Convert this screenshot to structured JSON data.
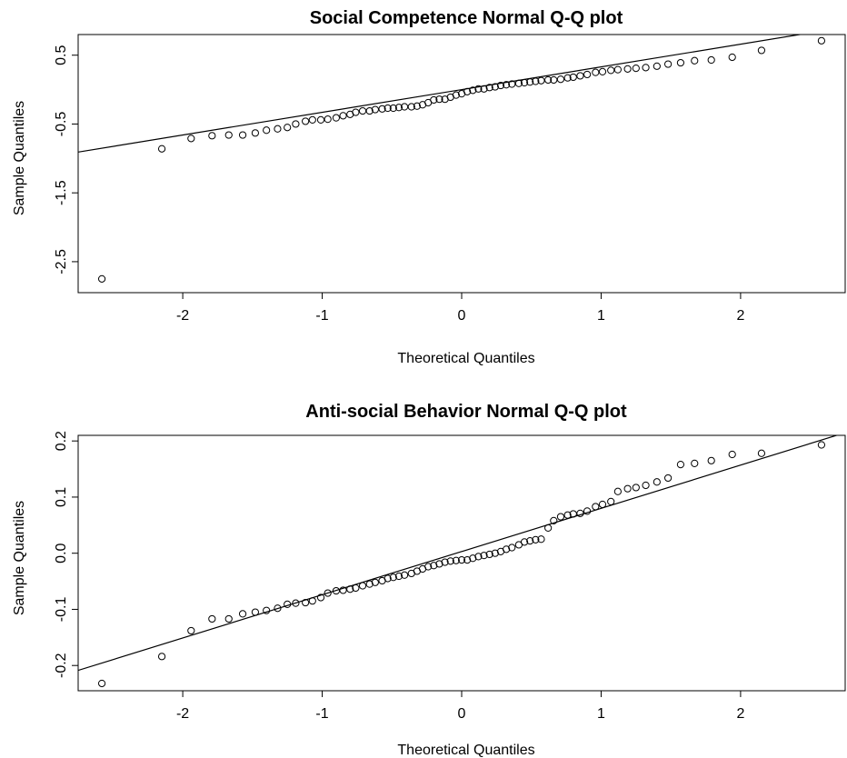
{
  "chart_data": [
    {
      "type": "scatter",
      "title": "Social Competence Normal Q-Q plot",
      "xlabel": "Theoretical Quantiles",
      "ylabel": "Sample Quantiles",
      "xlim": [
        -2.75,
        2.75
      ],
      "ylim": [
        -2.95,
        0.8
      ],
      "xticks": [
        -2,
        -1,
        0,
        1,
        2
      ],
      "xtick_labels": [
        "-2",
        "-1",
        "0",
        "1",
        "2"
      ],
      "yticks": [
        -2.5,
        -1.5,
        -0.5,
        0.5
      ],
      "ytick_labels": [
        "-2.5",
        "-1.5",
        "-0.5",
        "0.5"
      ],
      "grid": false,
      "reference_line": {
        "intercept": 0.0,
        "slope": 0.33
      },
      "series": [
        {
          "points": [
            [
              -2.58,
              -2.75
            ],
            [
              -2.15,
              -0.86
            ],
            [
              -1.94,
              -0.71
            ],
            [
              -1.79,
              -0.67
            ],
            [
              -1.67,
              -0.66
            ],
            [
              -1.57,
              -0.66
            ],
            [
              -1.48,
              -0.63
            ],
            [
              -1.4,
              -0.59
            ],
            [
              -1.32,
              -0.57
            ],
            [
              -1.25,
              -0.55
            ],
            [
              -1.19,
              -0.5
            ],
            [
              -1.12,
              -0.46
            ],
            [
              -1.07,
              -0.44
            ],
            [
              -1.01,
              -0.44
            ],
            [
              -0.96,
              -0.43
            ],
            [
              -0.9,
              -0.41
            ],
            [
              -0.85,
              -0.38
            ],
            [
              -0.8,
              -0.36
            ],
            [
              -0.76,
              -0.33
            ],
            [
              -0.71,
              -0.31
            ],
            [
              -0.66,
              -0.31
            ],
            [
              -0.62,
              -0.29
            ],
            [
              -0.57,
              -0.28
            ],
            [
              -0.53,
              -0.27
            ],
            [
              -0.49,
              -0.27
            ],
            [
              -0.45,
              -0.26
            ],
            [
              -0.41,
              -0.25
            ],
            [
              -0.36,
              -0.25
            ],
            [
              -0.32,
              -0.24
            ],
            [
              -0.28,
              -0.22
            ],
            [
              -0.24,
              -0.19
            ],
            [
              -0.2,
              -0.15
            ],
            [
              -0.16,
              -0.14
            ],
            [
              -0.12,
              -0.14
            ],
            [
              -0.08,
              -0.11
            ],
            [
              -0.04,
              -0.08
            ],
            [
              0.0,
              -0.06
            ],
            [
              0.04,
              -0.03
            ],
            [
              0.08,
              -0.01
            ],
            [
              0.12,
              0.01
            ],
            [
              0.16,
              0.01
            ],
            [
              0.2,
              0.03
            ],
            [
              0.24,
              0.04
            ],
            [
              0.28,
              0.06
            ],
            [
              0.32,
              0.07
            ],
            [
              0.36,
              0.08
            ],
            [
              0.41,
              0.09
            ],
            [
              0.45,
              0.1
            ],
            [
              0.49,
              0.11
            ],
            [
              0.53,
              0.12
            ],
            [
              0.57,
              0.13
            ],
            [
              0.62,
              0.14
            ],
            [
              0.66,
              0.14
            ],
            [
              0.71,
              0.15
            ],
            [
              0.76,
              0.17
            ],
            [
              0.8,
              0.18
            ],
            [
              0.85,
              0.2
            ],
            [
              0.9,
              0.22
            ],
            [
              0.96,
              0.25
            ],
            [
              1.01,
              0.26
            ],
            [
              1.07,
              0.28
            ],
            [
              1.12,
              0.29
            ],
            [
              1.19,
              0.3
            ],
            [
              1.25,
              0.31
            ],
            [
              1.32,
              0.32
            ],
            [
              1.4,
              0.34
            ],
            [
              1.48,
              0.37
            ],
            [
              1.57,
              0.39
            ],
            [
              1.67,
              0.42
            ],
            [
              1.79,
              0.43
            ],
            [
              1.94,
              0.47
            ],
            [
              2.15,
              0.57
            ],
            [
              2.58,
              0.71
            ]
          ]
        }
      ]
    },
    {
      "type": "scatter",
      "title": "Anti-social Behavior Normal Q-Q plot",
      "xlabel": "Theoretical Quantiles",
      "ylabel": "Sample Quantiles",
      "xlim": [
        -2.75,
        2.75
      ],
      "ylim": [
        -0.245,
        0.21
      ],
      "xticks": [
        -2,
        -1,
        0,
        1,
        2
      ],
      "xtick_labels": [
        "-2",
        "-1",
        "0",
        "1",
        "2"
      ],
      "yticks": [
        -0.2,
        -0.1,
        0.0,
        0.1,
        0.2
      ],
      "ytick_labels": [
        "-0.2",
        "-0.1",
        "0.0",
        "0.1",
        "0.2"
      ],
      "grid": false,
      "reference_line": {
        "intercept": 0.003,
        "slope": 0.077
      },
      "series": [
        {
          "points": [
            [
              -2.58,
              -0.232
            ],
            [
              -2.15,
              -0.184
            ],
            [
              -1.94,
              -0.138
            ],
            [
              -1.79,
              -0.117
            ],
            [
              -1.67,
              -0.117
            ],
            [
              -1.57,
              -0.108
            ],
            [
              -1.48,
              -0.105
            ],
            [
              -1.4,
              -0.102
            ],
            [
              -1.32,
              -0.098
            ],
            [
              -1.25,
              -0.091
            ],
            [
              -1.19,
              -0.089
            ],
            [
              -1.12,
              -0.088
            ],
            [
              -1.07,
              -0.085
            ],
            [
              -1.01,
              -0.079
            ],
            [
              -0.96,
              -0.071
            ],
            [
              -0.9,
              -0.067
            ],
            [
              -0.85,
              -0.066
            ],
            [
              -0.8,
              -0.064
            ],
            [
              -0.76,
              -0.062
            ],
            [
              -0.71,
              -0.058
            ],
            [
              -0.66,
              -0.055
            ],
            [
              -0.62,
              -0.052
            ],
            [
              -0.57,
              -0.049
            ],
            [
              -0.53,
              -0.045
            ],
            [
              -0.49,
              -0.043
            ],
            [
              -0.45,
              -0.041
            ],
            [
              -0.41,
              -0.039
            ],
            [
              -0.36,
              -0.036
            ],
            [
              -0.32,
              -0.032
            ],
            [
              -0.28,
              -0.028
            ],
            [
              -0.24,
              -0.024
            ],
            [
              -0.2,
              -0.022
            ],
            [
              -0.16,
              -0.019
            ],
            [
              -0.12,
              -0.016
            ],
            [
              -0.08,
              -0.014
            ],
            [
              -0.04,
              -0.013
            ],
            [
              0.0,
              -0.012
            ],
            [
              0.04,
              -0.012
            ],
            [
              0.08,
              -0.009
            ],
            [
              0.12,
              -0.006
            ],
            [
              0.16,
              -0.004
            ],
            [
              0.2,
              -0.002
            ],
            [
              0.24,
              0.0
            ],
            [
              0.28,
              0.003
            ],
            [
              0.32,
              0.007
            ],
            [
              0.36,
              0.01
            ],
            [
              0.41,
              0.015
            ],
            [
              0.45,
              0.02
            ],
            [
              0.49,
              0.022
            ],
            [
              0.53,
              0.024
            ],
            [
              0.57,
              0.025
            ],
            [
              0.62,
              0.045
            ],
            [
              0.66,
              0.058
            ],
            [
              0.71,
              0.065
            ],
            [
              0.76,
              0.068
            ],
            [
              0.8,
              0.07
            ],
            [
              0.85,
              0.071
            ],
            [
              0.9,
              0.075
            ],
            [
              0.96,
              0.083
            ],
            [
              1.01,
              0.087
            ],
            [
              1.07,
              0.092
            ],
            [
              1.12,
              0.11
            ],
            [
              1.19,
              0.115
            ],
            [
              1.25,
              0.117
            ],
            [
              1.32,
              0.121
            ],
            [
              1.4,
              0.127
            ],
            [
              1.48,
              0.134
            ],
            [
              1.57,
              0.158
            ],
            [
              1.67,
              0.16
            ],
            [
              1.79,
              0.165
            ],
            [
              1.94,
              0.176
            ],
            [
              2.15,
              0.178
            ],
            [
              2.58,
              0.193
            ]
          ]
        }
      ]
    }
  ]
}
